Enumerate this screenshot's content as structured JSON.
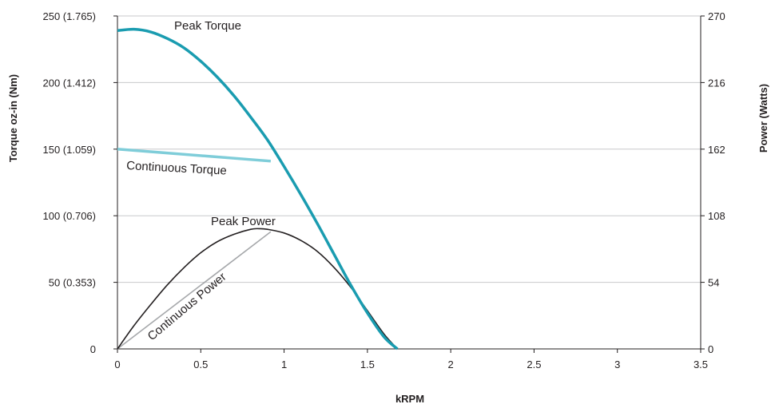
{
  "chart_data": {
    "type": "line",
    "xlabel": "kRPM",
    "ylabel": "Torque oz-in (Nm)",
    "y2label": "Power (Watts)",
    "xlim": [
      0,
      3.5
    ],
    "ylim": [
      0,
      250
    ],
    "y2lim": [
      0,
      270
    ],
    "grid": "horizontal",
    "x_ticks": [
      "0",
      "0.5",
      "1",
      "1.5",
      "2",
      "2.5",
      "3",
      "3.5"
    ],
    "x_tick_values": [
      0,
      0.5,
      1,
      1.5,
      2,
      2.5,
      3,
      3.5
    ],
    "y_ticks": [
      "0",
      "50 (0.353)",
      "100 (0.706)",
      "150 (1.059)",
      "200 (1.412)",
      "250 (1.765)"
    ],
    "y_tick_values": [
      0,
      50,
      100,
      150,
      200,
      250
    ],
    "y2_ticks": [
      "0",
      "54",
      "108",
      "162",
      "216",
      "270"
    ],
    "y2_tick_values": [
      0,
      54,
      108,
      162,
      216,
      270
    ],
    "colors": {
      "peak_torque": "#1a9cb0",
      "continuous_torque": "#7fcdd9",
      "peak_power": "#231f20",
      "continuous_power": "#a6a8ab",
      "axis": "#231f20",
      "grid": "#c8c9cb"
    },
    "series": [
      {
        "name": "Peak Torque",
        "axis": "left",
        "x": [
          0,
          0.1,
          0.2,
          0.3,
          0.4,
          0.5,
          0.6,
          0.7,
          0.8,
          0.9,
          1.0,
          1.1,
          1.2,
          1.3,
          1.4,
          1.5,
          1.6,
          1.68
        ],
        "y": [
          239,
          240,
          238,
          233,
          226,
          216,
          204,
          190,
          174,
          157,
          137,
          116,
          94,
          71,
          48,
          27,
          9,
          0
        ]
      },
      {
        "name": "Continuous Torque",
        "axis": "left",
        "x": [
          0,
          0.92
        ],
        "y": [
          150,
          141
        ]
      },
      {
        "name": "Peak Power",
        "axis": "right",
        "x": [
          0,
          0.1,
          0.2,
          0.3,
          0.4,
          0.5,
          0.6,
          0.7,
          0.8,
          0.85,
          0.9,
          1.0,
          1.1,
          1.2,
          1.3,
          1.4,
          1.5,
          1.6,
          1.68
        ],
        "y": [
          0,
          19,
          36,
          52,
          66,
          78,
          87,
          93,
          97,
          97.5,
          97,
          94,
          88,
          79,
          66,
          50,
          31,
          12,
          0
        ]
      },
      {
        "name": "Continuous Power",
        "axis": "right",
        "x": [
          0,
          0.92
        ],
        "y": [
          0,
          95
        ]
      }
    ],
    "labels": [
      {
        "text": "Peak Torque"
      },
      {
        "text": "Continuous Torque"
      },
      {
        "text": "Peak Power"
      },
      {
        "text": "Continuous Power"
      }
    ]
  }
}
